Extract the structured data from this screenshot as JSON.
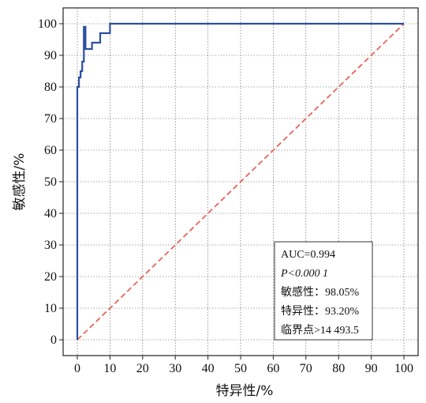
{
  "chart_data": {
    "type": "line",
    "xlabel": "特异性/%",
    "ylabel": "敏感性/%",
    "xlim": [
      0,
      100
    ],
    "ylim": [
      0,
      100
    ],
    "xticks": [
      0,
      10,
      20,
      30,
      40,
      50,
      60,
      70,
      80,
      90,
      100
    ],
    "yticks": [
      0,
      10,
      20,
      30,
      40,
      50,
      60,
      70,
      80,
      90,
      100
    ],
    "grid": true,
    "colors": {
      "roc": "#2a4fa0",
      "reference": "#e8645a"
    },
    "series": [
      {
        "x": [
          0,
          0,
          0.5,
          0.5,
          1,
          1,
          1.5,
          1.5,
          2,
          2,
          2.5,
          2.5,
          4.5,
          4.5,
          7,
          7,
          10,
          10,
          100
        ],
        "y": [
          0,
          80,
          80,
          83,
          83,
          85,
          85,
          88,
          88,
          99,
          99,
          92,
          92,
          94,
          94,
          97,
          97,
          100,
          100
        ]
      },
      {
        "x": [
          0,
          100
        ],
        "y": [
          0,
          100
        ]
      }
    ],
    "annotation": {
      "lines": [
        "AUC=0.994",
        "P<0.000 1",
        "敏感性：98.05%",
        "特异性：93.20%",
        "临界点>14 493.5"
      ]
    }
  }
}
